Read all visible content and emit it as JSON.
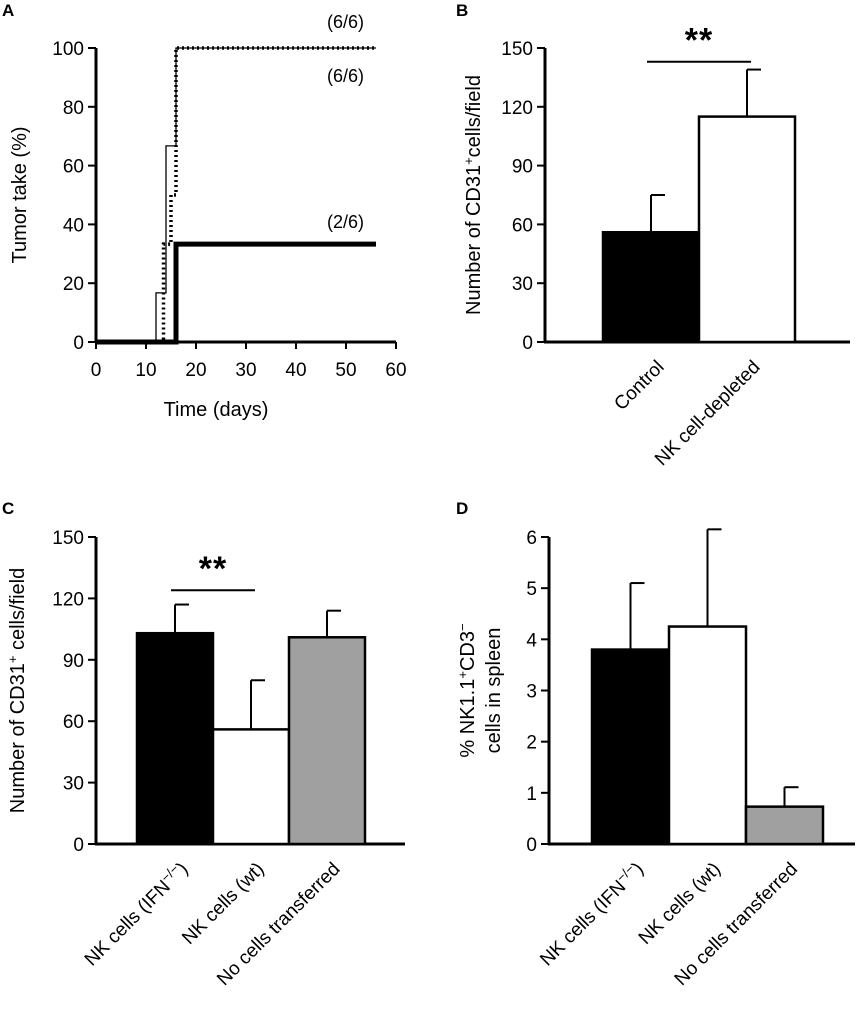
{
  "chart_data": [
    {
      "panel": "A",
      "type": "line",
      "xlabel": "Time (days)",
      "ylabel": "Tumor take (%)",
      "xlim": [
        0,
        60
      ],
      "ylim": [
        0,
        100
      ],
      "xticks": [
        0,
        10,
        20,
        30,
        40,
        50,
        60
      ],
      "yticks": [
        0,
        20,
        40,
        60,
        80,
        100
      ],
      "series": [
        {
          "style": "thin-solid",
          "x": [
            0,
            12,
            12,
            14,
            14,
            16,
            16,
            56
          ],
          "y": [
            0,
            0,
            16.7,
            16.7,
            66.7,
            66.7,
            100,
            100
          ],
          "annotation": "(6/6)"
        },
        {
          "style": "dotted",
          "x": [
            0,
            13.5,
            13.5,
            15,
            15,
            16,
            16,
            56
          ],
          "y": [
            0,
            0,
            33.3,
            33.3,
            50,
            50,
            100,
            100
          ],
          "annotation": "(6/6)"
        },
        {
          "style": "thick-solid",
          "x": [
            0,
            16,
            16,
            56
          ],
          "y": [
            0,
            0,
            33.3,
            33.3
          ],
          "annotation": "(2/6)"
        }
      ]
    },
    {
      "panel": "B",
      "type": "bar",
      "ylabel": {
        "pre": "Number of CD31",
        "sup": "+",
        "post": "cells/field"
      },
      "ylim": [
        0,
        150
      ],
      "yticks": [
        0,
        30,
        60,
        90,
        120,
        150
      ],
      "categories": [
        "Control",
        "NK cell-depleted"
      ],
      "values": [
        56,
        115
      ],
      "errors": [
        19,
        24
      ],
      "colors": [
        "#000000",
        "#ffffff"
      ],
      "significance": {
        "label": "**",
        "between": [
          0,
          1
        ],
        "y": 143
      }
    },
    {
      "panel": "C",
      "type": "bar",
      "ylabel": {
        "pre": "Number of CD31",
        "sup": "+",
        "post": " cells/field"
      },
      "ylim": [
        0,
        150
      ],
      "yticks": [
        0,
        30,
        60,
        90,
        120,
        150
      ],
      "categories": [
        {
          "pre": "NK cells (IFN",
          "sup": "−/−",
          "post": ")"
        },
        {
          "pre": "NK cells (wt)",
          "sup": "",
          "post": ""
        },
        {
          "pre": "No cells transferred",
          "sup": "",
          "post": ""
        }
      ],
      "values": [
        103,
        56,
        101
      ],
      "errors": [
        14,
        24,
        13
      ],
      "colors": [
        "#000000",
        "#ffffff",
        "#a0a0a0"
      ],
      "significance": {
        "label": "**",
        "between": [
          0,
          1
        ],
        "y": 124
      }
    },
    {
      "panel": "D",
      "type": "bar",
      "ylabel": {
        "line1_pre": "% NK1.1",
        "line1_sup1": "+",
        "line1_mid": "CD3",
        "line1_sup2": "−",
        "line2": "cells in spleen"
      },
      "ylim": [
        0,
        6
      ],
      "yticks": [
        0,
        1,
        2,
        3,
        4,
        5,
        6
      ],
      "categories": [
        {
          "pre": "NK cells (IFN",
          "sup": "−/−",
          "post": ")"
        },
        {
          "pre": "NK cells (wt)",
          "sup": "",
          "post": ""
        },
        {
          "pre": "No cells transferred",
          "sup": "",
          "post": ""
        }
      ],
      "values": [
        3.8,
        4.25,
        0.73
      ],
      "errors": [
        1.3,
        1.9,
        0.38
      ],
      "colors": [
        "#000000",
        "#ffffff",
        "#a0a0a0"
      ]
    }
  ]
}
